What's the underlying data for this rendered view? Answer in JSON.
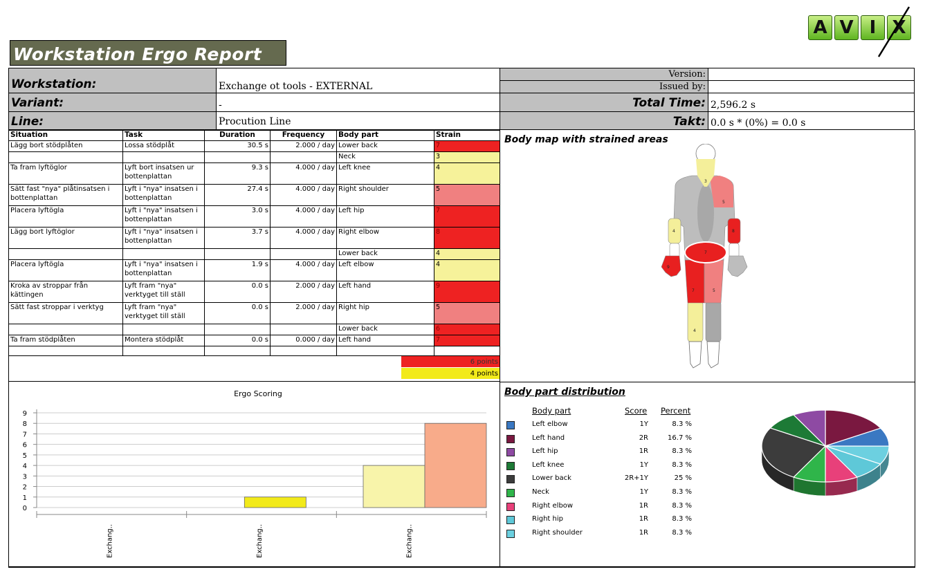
{
  "report_title": "Workstation Ergo Report",
  "logo_letters": [
    "A",
    "V",
    "I",
    "X"
  ],
  "header": {
    "workstation_label": "Workstation:",
    "workstation_value": "Exchange ot tools - EXTERNAL",
    "variant_label": "Variant:",
    "variant_value": "-",
    "line_label": "Line:",
    "line_value": "Procution Line",
    "version_label": "Version:",
    "version_value": "",
    "issued_label": "Issued by:",
    "issued_value": "",
    "total_time_label": "Total Time:",
    "total_time_value": "2,596.2 s",
    "takt_label": "Takt:",
    "takt_value": "0.0 s * (0%) = 0.0 s"
  },
  "table": {
    "columns": [
      "Situation",
      "Task",
      "Duration",
      "Frequency",
      "Body part",
      "Strain"
    ],
    "rows": [
      {
        "situation": "Lägg bort stödplåten",
        "task": "Lossa stödplåt",
        "duration": "30.5 s",
        "frequency": "2.000 / day",
        "bodypart": "Lower back",
        "strain": "7",
        "color": "#ee2222",
        "h": 16
      },
      {
        "situation": "",
        "task": "",
        "duration": "",
        "frequency": "",
        "bodypart": "Neck",
        "strain": "3",
        "color": "#f6f29a",
        "h": 16
      },
      {
        "situation": "Ta fram lyftöglor",
        "task": "Lyft bort insatsen ur bottenplattan",
        "duration": "9.3 s",
        "frequency": "4.000 / day",
        "bodypart": "Left knee",
        "strain": "4",
        "color": "#f6f29a",
        "h": 31
      },
      {
        "situation": "Sätt fast \"nya\" plåtinsatsen i bottenplattan",
        "task": "Lyft i \"nya\" insatsen i bottenplattan",
        "duration": "27.4 s",
        "frequency": "4.000 / day",
        "bodypart": "Right shoulder",
        "strain": "5",
        "color": "#f08080",
        "h": 31
      },
      {
        "situation": "Placera lyftögla",
        "task": "Lyft i \"nya\" insatsen i bottenplattan",
        "duration": "3.0 s",
        "frequency": "4.000 / day",
        "bodypart": "Left hip",
        "strain": "7",
        "color": "#ee2222",
        "h": 31
      },
      {
        "situation": "Lägg bort lyftöglor",
        "task": "Lyft i \"nya\" insatsen i bottenplattan",
        "duration": "3.7 s",
        "frequency": "4.000 / day",
        "bodypart": "Right elbow",
        "strain": "8",
        "color": "#ee2222",
        "h": 31
      },
      {
        "situation": "",
        "task": "",
        "duration": "",
        "frequency": "",
        "bodypart": "Lower back",
        "strain": "4",
        "color": "#f6f29a",
        "h": 16
      },
      {
        "situation": "Placera lyftögla",
        "task": "Lyft i \"nya\" insatsen i bottenplattan",
        "duration": "1.9 s",
        "frequency": "4.000 / day",
        "bodypart": "Left elbow",
        "strain": "4",
        "color": "#f6f29a",
        "h": 31
      },
      {
        "situation": "Kroka av stroppar från kättingen",
        "task": "Lyft fram \"nya\" verktyget till ställ",
        "duration": "0.0 s",
        "frequency": "2.000 / day",
        "bodypart": "Left hand",
        "strain": "9",
        "color": "#ee2222",
        "h": 31
      },
      {
        "situation": "Sätt fast stroppar i verktyg",
        "task": "Lyft fram \"nya\" verktyget till ställ",
        "duration": "0.0 s",
        "frequency": "2.000 / day",
        "bodypart": "Right hip",
        "strain": "5",
        "color": "#f08080",
        "h": 31
      },
      {
        "situation": "",
        "task": "",
        "duration": "",
        "frequency": "",
        "bodypart": "Lower back",
        "strain": "6",
        "color": "#ee2222",
        "h": 16
      },
      {
        "situation": "Ta fram stödplåten",
        "task": "Montera stödplåt",
        "duration": "0.0 s",
        "frequency": "0.000 / day",
        "bodypart": "Left hand",
        "strain": "7",
        "color": "#ee2222",
        "h": 16
      },
      {
        "situation": "",
        "task": "",
        "duration": "",
        "frequency": "",
        "bodypart": "",
        "strain": "",
        "color": "#ffffff",
        "h": 14
      }
    ],
    "totals": [
      {
        "label": "6 points",
        "color": "#ee2222"
      },
      {
        "label": "4 points",
        "color": "#f2ea1a"
      }
    ]
  },
  "body_map": {
    "title": "Body map with strained areas",
    "labels": {
      "neck": "3",
      "right_shoulder": "5",
      "right_elbow": "8",
      "left_elbow": "4",
      "lower_back": "7",
      "left_hip": "7",
      "right_hip": "5",
      "left_knee": "4",
      "left_hand": "9"
    },
    "colors": {
      "red": "#e82020",
      "pink": "#f08080",
      "yellow": "#f4ef9a",
      "grey": "#bdbdbd",
      "dark_grey": "#a8a8a8"
    }
  },
  "ergo_chart": {
    "chart_data": {
      "type": "bar",
      "title": "Ergo Scoring",
      "categories": [
        "Exchang..",
        "Exchang..",
        "Exchang.."
      ],
      "series": [
        {
          "color": "#f2ea1a",
          "values": [
            0,
            1,
            0
          ]
        },
        {
          "color": "#f8f4aa",
          "values": [
            0,
            0,
            4
          ]
        },
        {
          "color": "#f8ab8a",
          "values": [
            0,
            0,
            8
          ]
        }
      ],
      "ylim": [
        0,
        9
      ],
      "yticks": [
        0,
        1,
        2,
        3,
        4,
        5,
        6,
        7,
        8,
        9
      ],
      "grid": true
    }
  },
  "distribution": {
    "title": "Body part distribution",
    "col_bodypart": "Body part",
    "col_score": "Score",
    "col_percent": "Percent",
    "rows": [
      {
        "name": "Left elbow",
        "score": "1Y",
        "percent": "8.3 %",
        "color": "#3a78c2"
      },
      {
        "name": "Left hand",
        "score": "2R",
        "percent": "16.7 %",
        "color": "#7a1840"
      },
      {
        "name": "Left hip",
        "score": "1R",
        "percent": "8.3 %",
        "color": "#8e4aa3"
      },
      {
        "name": "Left knee",
        "score": "1Y",
        "percent": "8.3 %",
        "color": "#1d7a36"
      },
      {
        "name": "Lower back",
        "score": "2R+1Y",
        "percent": "25 %",
        "color": "#3c3c3c"
      },
      {
        "name": "Neck",
        "score": "1Y",
        "percent": "8.3 %",
        "color": "#2fb54a"
      },
      {
        "name": "Right elbow",
        "score": "1R",
        "percent": "8.3 %",
        "color": "#e8407a"
      },
      {
        "name": "Right hip",
        "score": "1R",
        "percent": "8.3 %",
        "color": "#5ec8d8"
      },
      {
        "name": "Right shoulder",
        "score": "1R",
        "percent": "8.3 %",
        "color": "#6cd0e0"
      }
    ],
    "chart_data": {
      "type": "pie",
      "slices": [
        {
          "label": "Left hand",
          "value": 16.7,
          "color": "#7a1840"
        },
        {
          "label": "Left elbow",
          "value": 8.3,
          "color": "#3a78c2"
        },
        {
          "label": "Right shoulder",
          "value": 8.3,
          "color": "#6cd0e0"
        },
        {
          "label": "Right hip",
          "value": 8.3,
          "color": "#5ec8d8"
        },
        {
          "label": "Right elbow",
          "value": 8.3,
          "color": "#e8407a"
        },
        {
          "label": "Neck",
          "value": 8.3,
          "color": "#2fb54a"
        },
        {
          "label": "Lower back",
          "value": 25,
          "color": "#3c3c3c"
        },
        {
          "label": "Left knee",
          "value": 8.3,
          "color": "#1d7a36"
        },
        {
          "label": "Left hip",
          "value": 8.3,
          "color": "#8e4aa3"
        }
      ]
    }
  }
}
